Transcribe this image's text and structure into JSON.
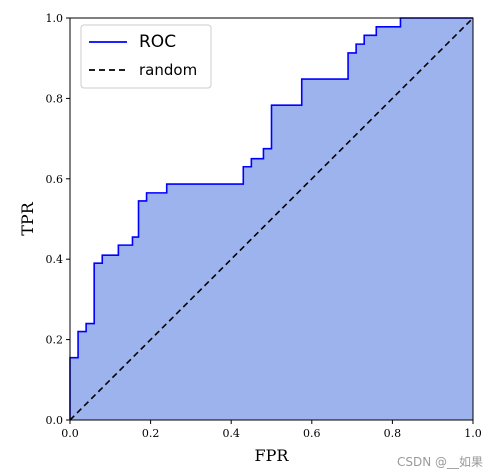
{
  "chart_data": {
    "type": "area",
    "xlabel": "FPR",
    "ylabel": "TPR",
    "xlim": [
      0.0,
      1.0
    ],
    "ylim": [
      0.0,
      1.0
    ],
    "xticks": [
      "0.0",
      "0.2",
      "0.4",
      "0.6",
      "0.8",
      "1.0"
    ],
    "yticks": [
      "0.0",
      "0.2",
      "0.4",
      "0.6",
      "0.8",
      "1.0"
    ],
    "grid": false,
    "legend_position": "top-left",
    "series": [
      {
        "name": "ROC",
        "style": "step line with filled area under curve",
        "color": "#0000ff",
        "fill_color": "#9db3ee",
        "x": [
          0.0,
          0.0,
          0.02,
          0.02,
          0.04,
          0.04,
          0.06,
          0.06,
          0.08,
          0.08,
          0.12,
          0.12,
          0.155,
          0.155,
          0.17,
          0.17,
          0.19,
          0.19,
          0.24,
          0.24,
          0.43,
          0.43,
          0.45,
          0.45,
          0.48,
          0.48,
          0.5,
          0.5,
          0.575,
          0.575,
          0.69,
          0.69,
          0.71,
          0.71,
          0.73,
          0.73,
          0.76,
          0.76,
          0.82,
          0.82,
          1.0
        ],
        "y": [
          0.0,
          0.155,
          0.155,
          0.22,
          0.22,
          0.24,
          0.24,
          0.39,
          0.39,
          0.41,
          0.41,
          0.435,
          0.435,
          0.455,
          0.455,
          0.545,
          0.545,
          0.565,
          0.565,
          0.587,
          0.587,
          0.63,
          0.63,
          0.65,
          0.65,
          0.675,
          0.675,
          0.783,
          0.783,
          0.848,
          0.848,
          0.913,
          0.913,
          0.935,
          0.935,
          0.957,
          0.957,
          0.978,
          0.978,
          1.0,
          1.0
        ]
      },
      {
        "name": "random",
        "style": "dashed",
        "color": "#000000",
        "x": [
          0.0,
          1.0
        ],
        "y": [
          0.0,
          1.0
        ]
      }
    ]
  },
  "watermark": "CSDN @__如果"
}
